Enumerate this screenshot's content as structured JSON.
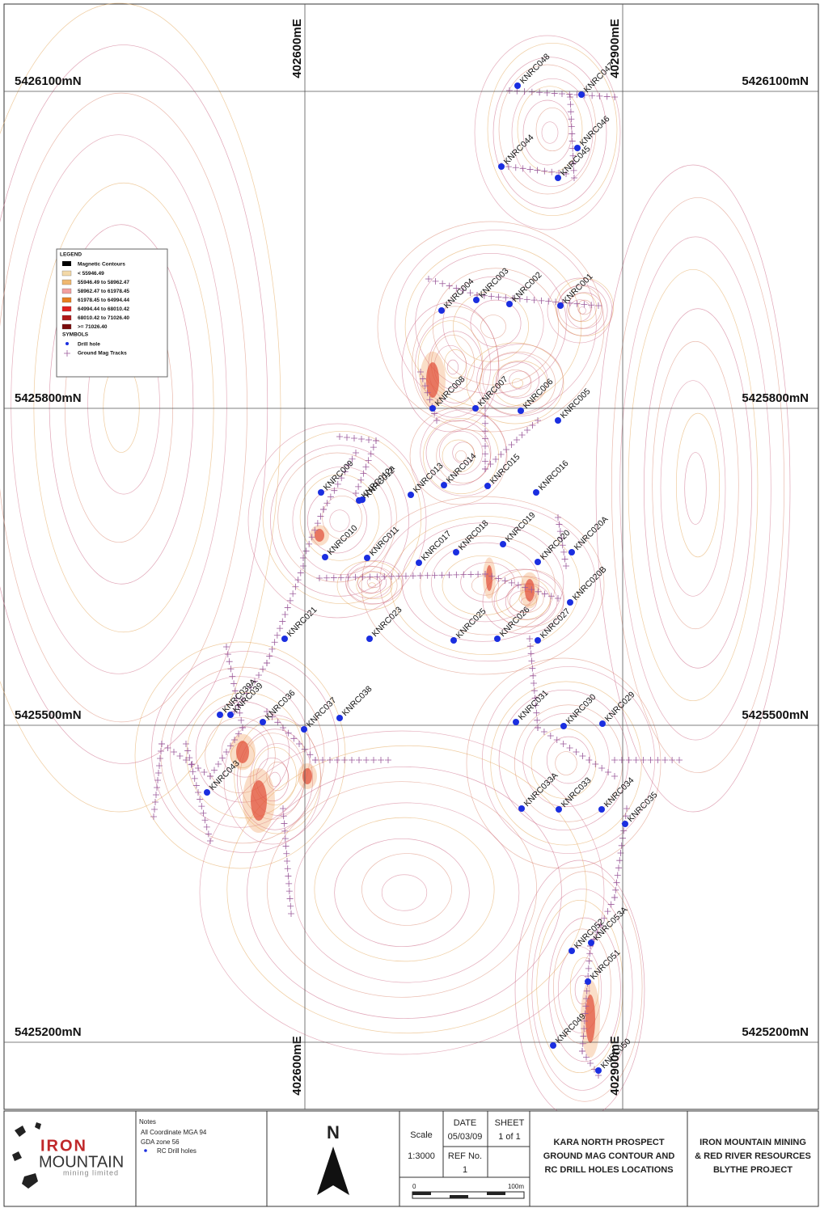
{
  "grid": {
    "eastings": [
      "402600mE",
      "402900mE"
    ],
    "northings": [
      "5426100mN",
      "5425800mN",
      "5425500mN",
      "5425200mN"
    ]
  },
  "drill_holes": [
    "KNRC048",
    "KNRC047",
    "KNRC046",
    "KNRC044",
    "KNRC045",
    "KNRC004",
    "KNRC003",
    "KNRC002",
    "KNRC001",
    "KNRC008",
    "KNRC007",
    "KNRC006",
    "KNRC005",
    "KNRC009",
    "KNRC012a",
    "KNRC012",
    "KNRC013",
    "KNRC014",
    "KNRC015",
    "KNRC016",
    "KNRC010",
    "KNRC011",
    "KNRC017",
    "KNRC018",
    "KNRC019",
    "KNRC020",
    "KNRC020A",
    "KNRC020B",
    "KNRC021",
    "KNRC023",
    "KNRC025",
    "KNRC026",
    "KNRC027",
    "KNRC036",
    "KNRC037",
    "KNRC038",
    "KNRC039A",
    "KNRC039",
    "KNRC031",
    "KNRC030",
    "KNRC029",
    "KNRC043",
    "KNRC033A",
    "KNRC033",
    "KNRC034",
    "KNRC035",
    "KNRC052",
    "KNRC053A",
    "KNRC051",
    "KNRC049",
    "KNRC050"
  ],
  "legend": {
    "title": "LEGEND",
    "contours_heading": "Magnetic Contours",
    "ranges": [
      {
        "label": "< 55946.49",
        "color": "#f3d9a8"
      },
      {
        "label": "55946.49 to 58962.47",
        "color": "#f0b870"
      },
      {
        "label": "58962.47 to 61978.45",
        "color": "#f2a0a0"
      },
      {
        "label": "61978.45 to 64994.44",
        "color": "#e88020"
      },
      {
        "label": "64994.44 to 68010.42",
        "color": "#e02020"
      },
      {
        "label": "68010.42 to 71026.40",
        "color": "#b01818"
      },
      {
        "label": ">= 71026.40",
        "color": "#7a0c0c"
      }
    ],
    "symbols_heading": "SYMBOLS",
    "drill_hole": "Drill hole",
    "mag_tracks": "Ground Mag Tracks"
  },
  "title_block": {
    "logo": {
      "word1": "IRON",
      "word2": "MOUNTAIN",
      "tagline": "mining limited"
    },
    "notes": [
      "Notes",
      "All Coordinate MGA 94",
      "GDA zone 56",
      "RC Drill holes"
    ],
    "north": "N",
    "scale_label": "Scale",
    "scale": "1:3000",
    "date_label": "DATE",
    "date": "05/03/09",
    "sheet_label": "SHEET",
    "sheet": "1 of 1",
    "ref_label": "REF No.",
    "ref": "1",
    "scale_bar": [
      "0",
      "100m"
    ],
    "project": [
      "KARA NORTH PROSPECT",
      "GROUND MAG CONTOUR AND",
      "RC DRILL HOLES LOCATIONS"
    ],
    "company": [
      "IRON MOUNTAIN MINING",
      "& RED RIVER RESOURCES",
      "BLYTHE PROJECT"
    ]
  }
}
